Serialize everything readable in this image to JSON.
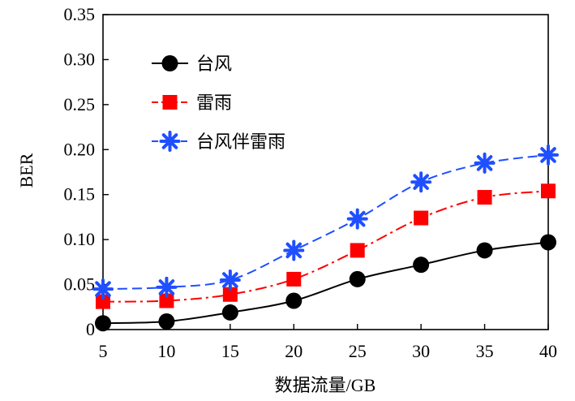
{
  "chart_data": {
    "type": "line",
    "title": "",
    "xlabel": "数据流量/GB",
    "ylabel": "BER",
    "x": [
      5,
      10,
      15,
      20,
      25,
      30,
      35,
      40
    ],
    "xlim": [
      5,
      40
    ],
    "ylim": [
      0,
      0.35
    ],
    "x_ticks": [
      "5",
      "10",
      "15",
      "20",
      "25",
      "30",
      "35",
      "40"
    ],
    "y_ticks": [
      "0",
      "0.05",
      "0.10",
      "0.15",
      "0.20",
      "0.25",
      "0.30",
      "0.35"
    ],
    "y_tick_values": [
      0,
      0.05,
      0.1,
      0.15,
      0.2,
      0.25,
      0.3,
      0.35
    ],
    "grid": false,
    "legend_position": "top-left",
    "series": [
      {
        "name": "台风",
        "values": [
          0.007,
          0.009,
          0.019,
          0.032,
          0.056,
          0.072,
          0.088,
          0.097
        ],
        "color": "#000000",
        "marker": "circle",
        "line_style": "solid"
      },
      {
        "name": "雷雨",
        "values": [
          0.031,
          0.032,
          0.039,
          0.056,
          0.088,
          0.124,
          0.147,
          0.154
        ],
        "color": "#ff0000",
        "marker": "square",
        "line_style": "dashdot"
      },
      {
        "name": "台风伴雷雨",
        "values": [
          0.045,
          0.047,
          0.055,
          0.088,
          0.123,
          0.164,
          0.185,
          0.194
        ],
        "color": "#1f4fff",
        "marker": "star",
        "line_style": "dashed"
      }
    ]
  }
}
